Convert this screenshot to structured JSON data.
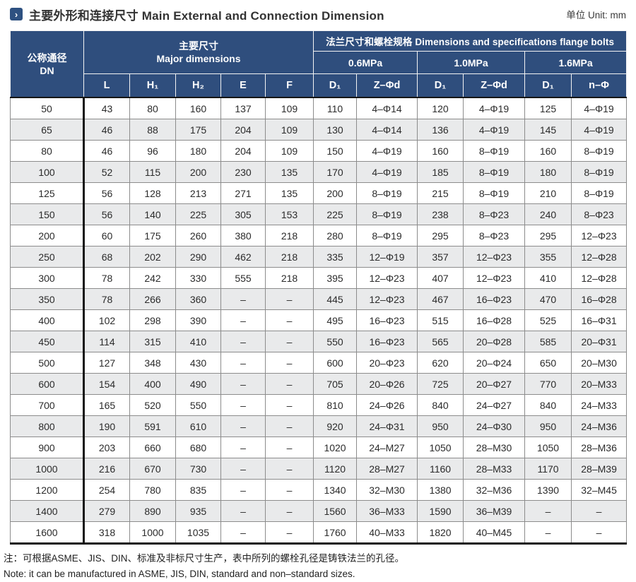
{
  "header": {
    "title_zh": "主要外形和连接尺寸",
    "title_en": "Main External and Connection Dimension",
    "unit": "单位 Unit: mm",
    "marker_icon_glyph": "›",
    "accent_color": "#2f4e7d"
  },
  "table": {
    "dn_zh": "公称通径",
    "dn_en": "DN",
    "major_zh": "主要尺寸",
    "major_en": "Major dimensions",
    "flange_label": "法兰尺寸和螺栓规格 Dimensions and specifications flange bolts",
    "pressures": [
      "0.6MPa",
      "1.0MPa",
      "1.6MPa"
    ],
    "sub_columns": [
      "L",
      "H₁",
      "H₂",
      "E",
      "F",
      "D₁",
      "Z–Φd",
      "D₁",
      "Z–Φd",
      "D₁",
      "n–Φ"
    ],
    "rows": [
      [
        "50",
        "43",
        "80",
        "160",
        "137",
        "109",
        "110",
        "4–Φ14",
        "120",
        "4–Φ19",
        "125",
        "4–Φ19"
      ],
      [
        "65",
        "46",
        "88",
        "175",
        "204",
        "109",
        "130",
        "4–Φ14",
        "136",
        "4–Φ19",
        "145",
        "4–Φ19"
      ],
      [
        "80",
        "46",
        "96",
        "180",
        "204",
        "109",
        "150",
        "4–Φ19",
        "160",
        "8–Φ19",
        "160",
        "8–Φ19"
      ],
      [
        "100",
        "52",
        "115",
        "200",
        "230",
        "135",
        "170",
        "4–Φ19",
        "185",
        "8–Φ19",
        "180",
        "8–Φ19"
      ],
      [
        "125",
        "56",
        "128",
        "213",
        "271",
        "135",
        "200",
        "8–Φ19",
        "215",
        "8–Φ19",
        "210",
        "8–Φ19"
      ],
      [
        "150",
        "56",
        "140",
        "225",
        "305",
        "153",
        "225",
        "8–Φ19",
        "238",
        "8–Φ23",
        "240",
        "8–Φ23"
      ],
      [
        "200",
        "60",
        "175",
        "260",
        "380",
        "218",
        "280",
        "8–Φ19",
        "295",
        "8–Φ23",
        "295",
        "12–Φ23"
      ],
      [
        "250",
        "68",
        "202",
        "290",
        "462",
        "218",
        "335",
        "12–Φ19",
        "357",
        "12–Φ23",
        "355",
        "12–Φ28"
      ],
      [
        "300",
        "78",
        "242",
        "330",
        "555",
        "218",
        "395",
        "12–Φ23",
        "407",
        "12–Φ23",
        "410",
        "12–Φ28"
      ],
      [
        "350",
        "78",
        "266",
        "360",
        "–",
        "–",
        "445",
        "12–Φ23",
        "467",
        "16–Φ23",
        "470",
        "16–Φ28"
      ],
      [
        "400",
        "102",
        "298",
        "390",
        "–",
        "–",
        "495",
        "16–Φ23",
        "515",
        "16–Φ28",
        "525",
        "16–Φ31"
      ],
      [
        "450",
        "114",
        "315",
        "410",
        "–",
        "–",
        "550",
        "16–Φ23",
        "565",
        "20–Φ28",
        "585",
        "20–Φ31"
      ],
      [
        "500",
        "127",
        "348",
        "430",
        "–",
        "–",
        "600",
        "20–Φ23",
        "620",
        "20–Φ24",
        "650",
        "20–M30"
      ],
      [
        "600",
        "154",
        "400",
        "490",
        "–",
        "–",
        "705",
        "20–Φ26",
        "725",
        "20–Φ27",
        "770",
        "20–M33"
      ],
      [
        "700",
        "165",
        "520",
        "550",
        "–",
        "–",
        "810",
        "24–Φ26",
        "840",
        "24–Φ27",
        "840",
        "24–M33"
      ],
      [
        "800",
        "190",
        "591",
        "610",
        "–",
        "–",
        "920",
        "24–Φ31",
        "950",
        "24–Φ30",
        "950",
        "24–M36"
      ],
      [
        "900",
        "203",
        "660",
        "680",
        "–",
        "–",
        "1020",
        "24–M27",
        "1050",
        "28–M30",
        "1050",
        "28–M36"
      ],
      [
        "1000",
        "216",
        "670",
        "730",
        "–",
        "–",
        "1120",
        "28–M27",
        "1160",
        "28–M33",
        "1170",
        "28–M39"
      ],
      [
        "1200",
        "254",
        "780",
        "835",
        "–",
        "–",
        "1340",
        "32–M30",
        "1380",
        "32–M36",
        "1390",
        "32–M45"
      ],
      [
        "1400",
        "279",
        "890",
        "935",
        "–",
        "–",
        "1560",
        "36–M33",
        "1590",
        "36–M39",
        "–",
        "–"
      ],
      [
        "1600",
        "318",
        "1000",
        "1035",
        "–",
        "–",
        "1760",
        "40–M33",
        "1820",
        "40–M45",
        "–",
        "–"
      ]
    ]
  },
  "notes": {
    "zh": "注：可根据ASME、JIS、DIN、标准及非标尺寸生产，表中所列的螺栓孔径是铸铁法兰的孔径。",
    "en": "Note: it can be manufactured in ASME, JIS, DIN, standard and non–standard sizes."
  }
}
